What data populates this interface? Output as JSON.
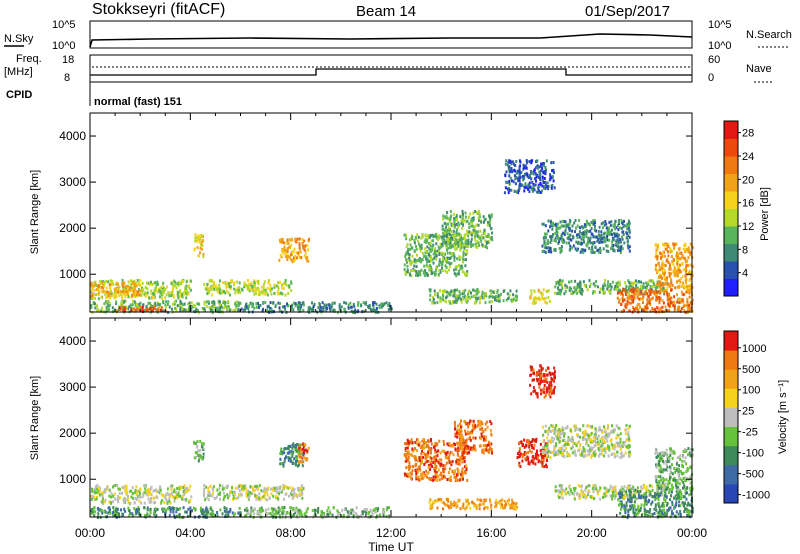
{
  "header": {
    "station": "Stokkseyri (fitACF)",
    "beam": "Beam 14",
    "date": "01/Sep/2017"
  },
  "noise_panel": {
    "left_label": "N.Sky",
    "right_label": "N.Search",
    "left_ticks": [
      "10^5",
      "10^0"
    ],
    "right_ticks": [
      "10^5",
      "10^0"
    ]
  },
  "freq_panel": {
    "left_label_line1": "Freq.",
    "left_label_line2": "[MHz]",
    "right_label": "Nave",
    "left_ticks": [
      "18",
      "8"
    ],
    "right_ticks": [
      "60",
      "0"
    ]
  },
  "cpid_panel": {
    "label": "CPID",
    "mode": "normal (fast) 151"
  },
  "chart_data": [
    {
      "type": "heatmap",
      "panel": "power",
      "ylabel": "Slant Range [km]",
      "xlabel": "",
      "x_ticks": [
        "00:00",
        "04:00",
        "08:00",
        "12:00",
        "16:00",
        "20:00",
        "00:00"
      ],
      "y_ticks": [
        "1000",
        "2000",
        "3000",
        "4000"
      ],
      "ylim": [
        180,
        4500
      ],
      "xlim_hours": [
        0,
        24
      ],
      "colorbar": {
        "label": "Power [dB]",
        "ticks": [
          "4",
          "8",
          "12",
          "16",
          "20",
          "24",
          "28"
        ],
        "colors": [
          "#1f1fff",
          "#2952b0",
          "#3f8a74",
          "#58b55a",
          "#b5d92a",
          "#f5d21e",
          "#f2a21a",
          "#f07a12",
          "#eb4a0c",
          "#e01a10"
        ]
      },
      "regions": [
        {
          "t0": 0.0,
          "t1": 4.0,
          "r0": 500,
          "r1": 900,
          "level": 4
        },
        {
          "t0": 0.0,
          "t1": 2.0,
          "r0": 550,
          "r1": 850,
          "level": 6
        },
        {
          "t0": 0.0,
          "t1": 6.0,
          "r0": 200,
          "r1": 450,
          "level": 3
        },
        {
          "t0": 1.0,
          "t1": 3.0,
          "r0": 220,
          "r1": 330,
          "level": 8
        },
        {
          "t0": 4.1,
          "t1": 4.5,
          "r0": 1400,
          "r1": 1900,
          "level": 5
        },
        {
          "t0": 4.5,
          "t1": 8.0,
          "r0": 580,
          "r1": 900,
          "level": 4
        },
        {
          "t0": 7.5,
          "t1": 8.7,
          "r0": 1300,
          "r1": 1800,
          "level": 6
        },
        {
          "t0": 6.0,
          "t1": 12.0,
          "r0": 200,
          "r1": 420,
          "level": 2
        },
        {
          "t0": 12.5,
          "t1": 15.0,
          "r0": 1000,
          "r1": 1900,
          "level": 3
        },
        {
          "t0": 13.5,
          "t1": 17.0,
          "r0": 400,
          "r1": 700,
          "level": 3
        },
        {
          "t0": 14.0,
          "t1": 16.0,
          "r0": 1600,
          "r1": 2400,
          "level": 3
        },
        {
          "t0": 16.5,
          "t1": 18.5,
          "r0": 2800,
          "r1": 3500,
          "level": 1
        },
        {
          "t0": 17.5,
          "t1": 18.3,
          "r0": 400,
          "r1": 700,
          "level": 5
        },
        {
          "t0": 18.0,
          "t1": 21.5,
          "r0": 1500,
          "r1": 2200,
          "level": 2
        },
        {
          "t0": 18.5,
          "t1": 23.0,
          "r0": 600,
          "r1": 900,
          "level": 3
        },
        {
          "t0": 21.0,
          "t1": 24.0,
          "r0": 200,
          "r1": 700,
          "level": 7
        },
        {
          "t0": 22.5,
          "t1": 24.0,
          "r0": 700,
          "r1": 1700,
          "level": 6
        }
      ]
    },
    {
      "type": "heatmap",
      "panel": "velocity",
      "ylabel": "Slant Range [km]",
      "xlabel": "Time UT",
      "x_ticks": [
        "00:00",
        "04:00",
        "08:00",
        "12:00",
        "16:00",
        "20:00",
        "00:00"
      ],
      "y_ticks": [
        "1000",
        "2000",
        "3000",
        "4000"
      ],
      "ylim": [
        180,
        4500
      ],
      "xlim_hours": [
        0,
        24
      ],
      "colorbar": {
        "label": "Velocity [m s⁻¹]",
        "ticks": [
          "1000",
          "500",
          "100",
          "25",
          "-25",
          "-100",
          "-500",
          "-1000"
        ],
        "colors": [
          "#2946b5",
          "#3f6aa8",
          "#3f8a5a",
          "#66c23a",
          "#bdbdbd",
          "#f5d21e",
          "#f2a21a",
          "#f07a12",
          "#e01a10"
        ]
      },
      "regions": [
        {
          "t0": 0.0,
          "t1": 4.0,
          "r0": 500,
          "r1": 900,
          "level": 4
        },
        {
          "t0": 0.0,
          "t1": 6.0,
          "r0": 200,
          "r1": 420,
          "level": 2
        },
        {
          "t0": 4.1,
          "t1": 4.5,
          "r0": 1400,
          "r1": 1900,
          "level": 3
        },
        {
          "t0": 4.5,
          "t1": 8.5,
          "r0": 580,
          "r1": 900,
          "level": 4
        },
        {
          "t0": 7.5,
          "t1": 8.5,
          "r0": 1300,
          "r1": 1800,
          "level": 2
        },
        {
          "t0": 8.2,
          "t1": 8.7,
          "r0": 1400,
          "r1": 1800,
          "level": 7
        },
        {
          "t0": 6.0,
          "t1": 12.0,
          "r0": 200,
          "r1": 420,
          "level": 3
        },
        {
          "t0": 12.5,
          "t1": 15.0,
          "r0": 1000,
          "r1": 1900,
          "level": 7
        },
        {
          "t0": 13.5,
          "t1": 17.0,
          "r0": 380,
          "r1": 600,
          "level": 6
        },
        {
          "t0": 14.5,
          "t1": 16.0,
          "r0": 1600,
          "r1": 2300,
          "level": 7
        },
        {
          "t0": 17.0,
          "t1": 18.2,
          "r0": 1300,
          "r1": 1900,
          "level": 8
        },
        {
          "t0": 17.5,
          "t1": 18.5,
          "r0": 2800,
          "r1": 3500,
          "level": 8
        },
        {
          "t0": 18.0,
          "t1": 21.5,
          "r0": 1500,
          "r1": 2200,
          "level": 4
        },
        {
          "t0": 18.5,
          "t1": 23.0,
          "r0": 600,
          "r1": 900,
          "level": 4
        },
        {
          "t0": 21.0,
          "t1": 24.0,
          "r0": 200,
          "r1": 800,
          "level": 2
        },
        {
          "t0": 22.5,
          "t1": 24.0,
          "r0": 800,
          "r1": 1700,
          "level": 3
        }
      ]
    }
  ]
}
